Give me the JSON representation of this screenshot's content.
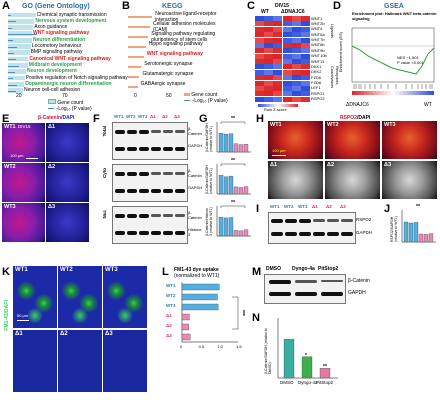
{
  "panels": {
    "A": {
      "letter": "A",
      "title": "GO (Gene Ontology)",
      "terms": [
        {
          "label": "Chemical synaptic transmission",
          "color": "#000000",
          "bar": 0.46,
          "line": 0.1
        },
        {
          "label": "Nervous system development",
          "color": "#2e9e48",
          "bar": 0.44,
          "line": 0.25
        },
        {
          "label": "Axon guidance",
          "color": "#000000",
          "bar": 0.42,
          "line": 0.12
        },
        {
          "label": "WNT signaling pathway",
          "color": "#e02020",
          "bar": 0.4,
          "line": 0.95
        },
        {
          "label": "Neuron differentiation",
          "color": "#2e9e48",
          "bar": 0.4,
          "line": 0.15
        },
        {
          "label": "Locomotory behaviour",
          "color": "#000000",
          "bar": 0.38,
          "line": 0.3
        },
        {
          "label": "BMP signaling pathway",
          "color": "#000000",
          "bar": 0.36,
          "line": 0.2
        },
        {
          "label": "Canonical WNT signaling pathway",
          "color": "#e02020",
          "bar": 0.34,
          "line": 0.25
        },
        {
          "label": "Midbrain development",
          "color": "#2e9e48",
          "bar": 0.33,
          "line": 0.35
        },
        {
          "label": "Neuron development",
          "color": "#2e9e48",
          "bar": 0.3,
          "line": 0.22
        },
        {
          "label": "Positive regulation of Notch signaling pathway",
          "color": "#000000",
          "bar": 0.28,
          "line": 0.18
        },
        {
          "label": "Dopaminergic neuron differentiation",
          "color": "#2e9e48",
          "bar": 0.27,
          "line": 0.3
        },
        {
          "label": "Neuron cell-cell adhesion",
          "color": "#000000",
          "bar": 0.25,
          "line": 0.28
        }
      ],
      "axis_ticks": [
        "20",
        "70"
      ],
      "legend_count": "Gene count",
      "legend_p": "−Log₁₀ (P value)"
    },
    "B": {
      "letter": "B",
      "title": "KEGG",
      "terms": [
        {
          "label": "Neuroactive ligand-receptor interaction",
          "color": "#000000",
          "bar": 0.55
        },
        {
          "label": "Cellular adhesion molecules (CAM)",
          "color": "#000000",
          "bar": 0.5
        },
        {
          "label": "Signaling pathway regulating pluripotency of stem cells",
          "color": "#000000",
          "bar": 0.46
        },
        {
          "label": "Hippo signaling pathway",
          "color": "#000000",
          "bar": 0.4
        },
        {
          "label": "WNT signaling pathway",
          "color": "#e02020",
          "bar": 0.36
        },
        {
          "label": "Serotonergic synapse",
          "color": "#000000",
          "bar": 0.3
        },
        {
          "label": "Glutamatergic synapse",
          "color": "#000000",
          "bar": 0.26
        },
        {
          "label": "GABAergic synapse",
          "color": "#000000",
          "bar": 0.22
        }
      ],
      "axis_ticks": [
        "0",
        "50"
      ],
      "legend_count": "Gene count",
      "legend_p": "−Log₁₀ (P value)"
    },
    "C": {
      "letter": "C",
      "title": "DIV15",
      "col_wt": "WT",
      "col_ko": "ΔDNAJC6",
      "genes": [
        "WNT1",
        "WNT2b",
        "WNT4",
        "WNT5a",
        "WNT7b",
        "WNT8b",
        "WNT9b",
        "WNT10b",
        "WNT11",
        "DKK1",
        "DKK2",
        "FZD6",
        "FZD8",
        "LEF1",
        "RSPO1",
        "RSPO2"
      ],
      "side_top": "Ligands",
      "side_bottom": "Receptors, Coactivators",
      "scale_lbl": "Row Z-score"
    },
    "D": {
      "letter": "D",
      "title": "GSEA",
      "subtitle": "Enrichment plot: Hallmark WNT beta catenin signaling",
      "ylabel": "Enrichment score (ES)",
      "nes": "NES      −1.501",
      "pval": "P value  <0.001",
      "left": "ΔDNAJC6",
      "right": "WT"
    },
    "E": {
      "letter": "E",
      "title": "β-Catenin",
      "title2": "/DAPI",
      "labels": [
        "WT1",
        "Δ1",
        "WT2",
        "Δ2",
        "WT3",
        "Δ3"
      ],
      "div": "DIV15",
      "scale": "100 μm"
    },
    "F": {
      "letter": "F",
      "lanes": [
        "WT1",
        "WT2",
        "WT3",
        "Δ1",
        "Δ2",
        "Δ3"
      ],
      "rows": [
        {
          "side": "Total",
          "prot": "β-Catenin"
        },
        {
          "side": "",
          "prot": "GAPDH"
        },
        {
          "side": "Cyto",
          "prot": "β-Catenin"
        },
        {
          "side": "",
          "prot": "GAPDH"
        },
        {
          "side": "Nuc",
          "prot": "β-Catenin"
        },
        {
          "side": "",
          "prot": "Histone 3"
        }
      ]
    },
    "G": {
      "letter": "G",
      "ylabels": [
        "β-Catenin/GAPDH (relative to WT1)",
        "β-Catenin/GAPDH (relative to WT1)",
        "β-Catenin/Histone 3 (relative to WT1)"
      ],
      "sig": [
        "**",
        "**",
        "**"
      ],
      "ticks": [
        "0",
        "0.5",
        "1",
        "1.5"
      ],
      "bars": [
        [
          1.0,
          0.95,
          0.98,
          0.45,
          0.4,
          0.42
        ],
        [
          1.0,
          0.92,
          0.96,
          0.38,
          0.35,
          0.4
        ],
        [
          1.0,
          0.97,
          0.99,
          0.3,
          0.28,
          0.33
        ]
      ]
    },
    "H": {
      "letter": "H",
      "title": "RSPO2",
      "title2": "/DAPI",
      "labels": [
        "WT1",
        "WT2",
        "WT3",
        "Δ1",
        "Δ2",
        "Δ3"
      ],
      "scale": "100 μm"
    },
    "I": {
      "letter": "I",
      "lanes": [
        "WT1",
        "WT2",
        "WT3",
        "Δ1",
        "Δ2",
        "Δ3"
      ],
      "rows": [
        "RSPO2",
        "GAPDH"
      ]
    },
    "J": {
      "letter": "J",
      "ylabel": "RSPO2/GAPDH (relative to WT1)",
      "sig": "**",
      "bars": [
        1.0,
        0.95,
        0.98,
        0.4,
        0.38,
        0.42
      ]
    },
    "K": {
      "letter": "K",
      "title": "FM1-43/DAPI",
      "labels": [
        "WT1",
        "WT2",
        "WT3",
        "Δ1",
        "Δ2",
        "Δ3"
      ],
      "scale": "50 μm"
    },
    "L": {
      "letter": "L",
      "title": "FM1-43 dye uptake",
      "subtitle": "(normalized to WT1)",
      "cats": [
        "WT1",
        "WT2",
        "WT3",
        "Δ1",
        "Δ2",
        "Δ3"
      ],
      "values": [
        1.0,
        0.95,
        0.97,
        0.2,
        0.18,
        0.22
      ],
      "sig": "***",
      "ticks": [
        "0",
        "0.5",
        "1.0",
        "1.5"
      ]
    },
    "M": {
      "letter": "M",
      "lanes": [
        "DMSO",
        "Dyngo-4a",
        "PitStop2"
      ],
      "rows": [
        "β-Catenin",
        "GAPDH"
      ]
    },
    "N": {
      "letter": "N",
      "ylabel": "β-Catenin/GAPDH (relative to DMSO)",
      "cats": [
        "DMSO",
        "Dyngo-4a",
        "PitStop2"
      ],
      "values": [
        1.0,
        0.55,
        0.25
      ],
      "sig": [
        "*",
        "**"
      ],
      "colors": [
        "#3aaea0",
        "#3fae4d",
        "#e07aa0"
      ]
    }
  },
  "colors": {
    "wt_bar": "#55aee0",
    "ko_bar": "#e58ab5",
    "go_bar": "#bfe3ec",
    "go_line": "#4a90c8",
    "kegg_bar": "#f2a47a",
    "red_stain": "#d4143a",
    "blue_stain": "#1a2bb8",
    "green_stain": "#36d05a"
  }
}
